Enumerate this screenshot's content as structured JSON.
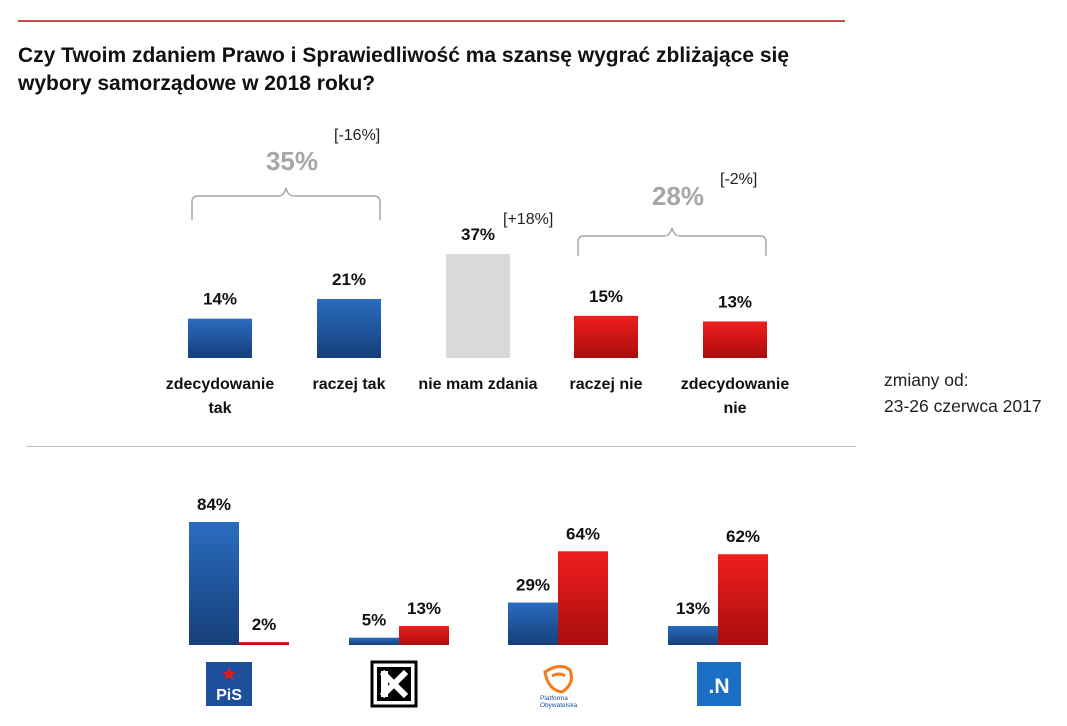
{
  "title": "Czy Twoim zdaniem Prawo i Sprawiedliwość ma szansę wygrać zbliżające się wybory samorządowe w 2018 roku?",
  "note": {
    "line1": "zmiany od:",
    "line2": "23-26 czerwca 2017"
  },
  "colors": {
    "positive": "#1f5fa8",
    "negative": "#e01b1b",
    "neutral": "#d9d9d9",
    "group_label": "#a6a6a6"
  },
  "chart_data": [
    {
      "type": "bar",
      "categories": [
        "zdecydowanie tak",
        "raczej tak",
        "nie mam zdania",
        "raczej nie",
        "zdecydowanie nie"
      ],
      "category_lines": [
        [
          "zdecydowanie",
          "tak"
        ],
        [
          "raczej tak"
        ],
        [
          "nie mam zdania"
        ],
        [
          "raczej nie"
        ],
        [
          "zdecydowanie",
          "nie"
        ]
      ],
      "values": [
        14,
        21,
        37,
        15,
        13
      ],
      "value_labels": [
        "14%",
        "21%",
        "37%",
        "15%",
        "13%"
      ],
      "bar_colors": [
        "positive",
        "positive",
        "neutral",
        "negative",
        "negative"
      ],
      "changes": [
        null,
        null,
        "[+18%]",
        null,
        null
      ],
      "groups": [
        {
          "label": "35%",
          "change": "[-16%]",
          "from": 0,
          "to": 1
        },
        {
          "label": "28%",
          "change": "[-2%]",
          "from": 3,
          "to": 4
        }
      ],
      "ylim": [
        0,
        40
      ]
    },
    {
      "type": "bar",
      "categories": [
        "PiS",
        "Kukiz'15",
        "Platforma Obywatelska",
        "Nowoczesna"
      ],
      "series": [
        {
          "values": [
            84,
            5,
            29,
            13
          ],
          "value_labels": [
            "84%",
            "5%",
            "29%",
            "13%"
          ],
          "color": "positive"
        },
        {
          "values": [
            2,
            13,
            64,
            62
          ],
          "value_labels": [
            "2%",
            "13%",
            "64%",
            "62%"
          ],
          "color": "negative"
        }
      ],
      "ylim": [
        0,
        100
      ]
    }
  ],
  "logos": {
    "pis": "PiS",
    "kukiz": "kukiz-logo-icon",
    "po_line1": "Platforma",
    "po_line2": "Obywatelska",
    "n": ".N"
  }
}
